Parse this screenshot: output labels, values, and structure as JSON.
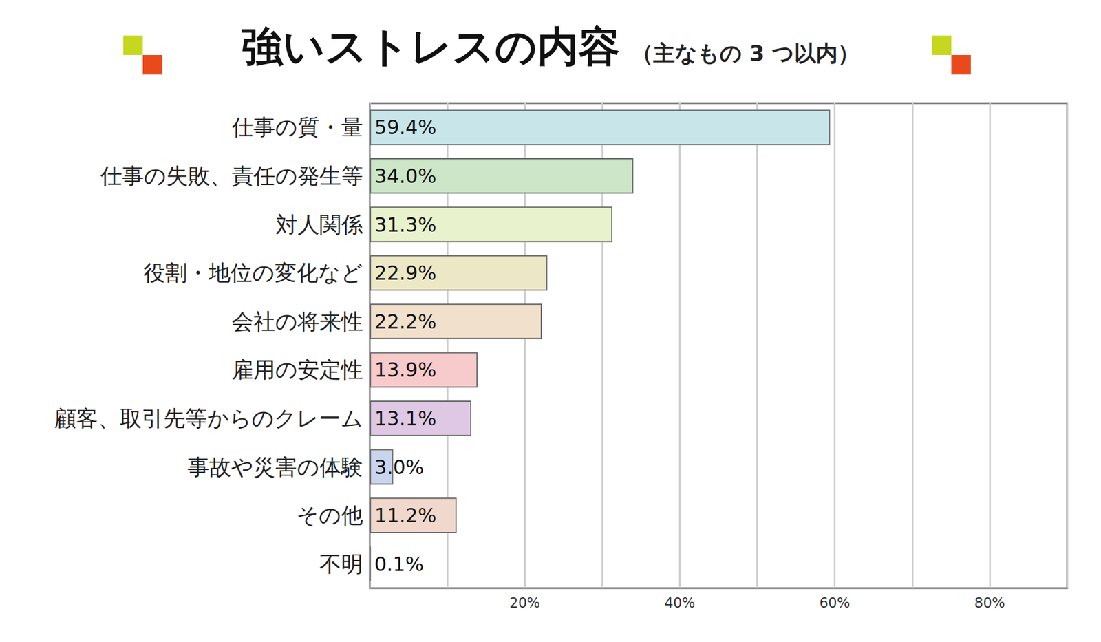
{
  "chart_data": {
    "type": "bar",
    "title": "強いストレスの内容",
    "subtitle": "（主なもの 3 つ以内）",
    "orientation": "horizontal",
    "categories": [
      "仕事の質・量",
      "仕事の失敗、責任の発生等",
      "対人関係",
      "役割・地位の変化など",
      "会社の将来性",
      "雇用の安定性",
      "顧客、取引先等からのクレーム",
      "事故や災害の体験",
      "その他",
      "不明"
    ],
    "values": [
      59.4,
      34.0,
      31.3,
      22.9,
      22.2,
      13.9,
      13.1,
      3.0,
      11.2,
      0.1
    ],
    "value_labels": [
      "59.4%",
      "34.0%",
      "31.3%",
      "22.9%",
      "22.2%",
      "13.9%",
      "13.1%",
      "3.0%",
      "11.2%",
      "0.1%"
    ],
    "colors": [
      "#c8e6ea",
      "#cde6c8",
      "#e8f2cc",
      "#ece8c6",
      "#f1e0cb",
      "#f7cacb",
      "#dfc8e3",
      "#c9d5ec",
      "#f1d8cc",
      "#eeeeee"
    ],
    "xlim": [
      0,
      90
    ],
    "xticks": [
      {
        "value": 20,
        "label": "20%"
      },
      {
        "value": 40,
        "label": "40%"
      },
      {
        "value": 60,
        "label": "60%"
      },
      {
        "value": 80,
        "label": "80%"
      }
    ],
    "grid": true,
    "data_labels": true
  }
}
